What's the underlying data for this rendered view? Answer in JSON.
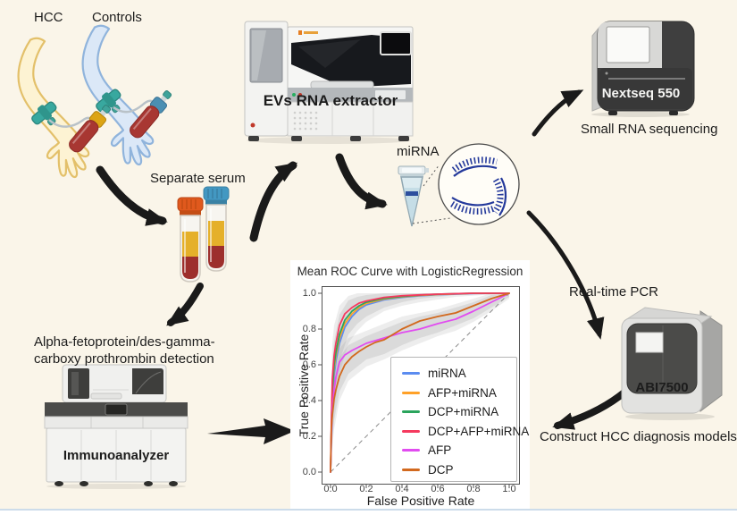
{
  "page": {
    "background": "#faf5e9"
  },
  "labels": {
    "hcc": "HCC",
    "controls": "Controls",
    "separate_serum": "Separate serum",
    "evs_extractor": "EVs RNA extractor",
    "mirna": "miRNA",
    "small_rna_seq": "Small RNA sequencing",
    "nextseq": "Nextseq 550",
    "realtime_pcr": "Real-time PCR",
    "abi7500": "ABI7500",
    "construct_models": "Construct HCC diagnosis models",
    "afp_dcp_line1": "Alpha-fetoprotein/des-gamma-",
    "afp_dcp_line2": "carboxy prothrombin detection",
    "immunoanalyzer": "Immunoanalyzer"
  },
  "chart_data": {
    "type": "line",
    "title": "Mean ROC Curve with LogisticRegression",
    "xlabel": "False Positive Rate",
    "ylabel": "True Positive Rate",
    "xlim": [
      0,
      1
    ],
    "ylim": [
      0,
      1
    ],
    "x_ticks": [
      "0.0",
      "0.2",
      "0.4",
      "0.6",
      "0.8",
      "1.0"
    ],
    "y_ticks": [
      "0.0",
      "0.2",
      "0.4",
      "0.6",
      "0.8",
      "1.0"
    ],
    "grid": false,
    "legend_position": "lower right",
    "diagonal_reference": true,
    "series": [
      {
        "name": "miRNA",
        "color": "#5b8cf0",
        "x": [
          0,
          0.005,
          0.01,
          0.02,
          0.03,
          0.05,
          0.08,
          0.12,
          0.16,
          0.2,
          0.3,
          0.4,
          0.5,
          0.6,
          0.8,
          1
        ],
        "y": [
          0,
          0.17,
          0.4,
          0.54,
          0.62,
          0.72,
          0.81,
          0.87,
          0.91,
          0.935,
          0.963,
          0.977,
          0.986,
          0.992,
          0.999,
          1
        ]
      },
      {
        "name": "AFP+miRNA",
        "color": "#ffa128",
        "x": [
          0,
          0.005,
          0.01,
          0.02,
          0.03,
          0.05,
          0.08,
          0.12,
          0.16,
          0.2,
          0.3,
          0.4,
          0.5,
          0.6,
          0.8,
          1
        ],
        "y": [
          0,
          0.24,
          0.44,
          0.58,
          0.65,
          0.75,
          0.83,
          0.885,
          0.92,
          0.943,
          0.968,
          0.98,
          0.988,
          0.993,
          1,
          1
        ]
      },
      {
        "name": "DCP+miRNA",
        "color": "#2aa45c",
        "x": [
          0,
          0.005,
          0.01,
          0.02,
          0.03,
          0.05,
          0.08,
          0.12,
          0.16,
          0.2,
          0.3,
          0.4,
          0.5,
          0.6,
          0.8,
          1
        ],
        "y": [
          0,
          0.26,
          0.46,
          0.6,
          0.67,
          0.77,
          0.85,
          0.9,
          0.93,
          0.95,
          0.972,
          0.982,
          0.99,
          0.995,
          1,
          1
        ]
      },
      {
        "name": "DCP+AFP+miRNA",
        "color": "#f5395e",
        "x": [
          0,
          0.005,
          0.01,
          0.02,
          0.03,
          0.05,
          0.08,
          0.12,
          0.16,
          0.2,
          0.3,
          0.4,
          0.5,
          0.6,
          0.8,
          1
        ],
        "y": [
          0,
          0.3,
          0.52,
          0.65,
          0.72,
          0.82,
          0.885,
          0.92,
          0.945,
          0.957,
          0.977,
          0.986,
          0.991,
          0.995,
          1,
          1
        ]
      },
      {
        "name": "AFP",
        "color": "#e14cf0",
        "x": [
          0,
          0.005,
          0.01,
          0.02,
          0.03,
          0.05,
          0.08,
          0.12,
          0.16,
          0.2,
          0.3,
          0.4,
          0.5,
          0.6,
          0.7,
          0.8,
          0.9,
          1
        ],
        "y": [
          0,
          0.21,
          0.35,
          0.46,
          0.53,
          0.615,
          0.655,
          0.68,
          0.7,
          0.72,
          0.75,
          0.78,
          0.8,
          0.83,
          0.855,
          0.9,
          0.95,
          1
        ]
      },
      {
        "name": "DCP",
        "color": "#d2691e",
        "x": [
          0,
          0.005,
          0.01,
          0.02,
          0.03,
          0.05,
          0.08,
          0.12,
          0.16,
          0.2,
          0.25,
          0.3,
          0.35,
          0.4,
          0.5,
          0.6,
          0.7,
          0.8,
          0.9,
          1
        ],
        "y": [
          0,
          0.25,
          0.32,
          0.41,
          0.46,
          0.535,
          0.6,
          0.645,
          0.675,
          0.7,
          0.725,
          0.74,
          0.77,
          0.8,
          0.845,
          0.87,
          0.89,
          0.93,
          0.97,
          1
        ]
      }
    ],
    "confidence_bands": [
      {
        "group": "miRNA-models outer",
        "opacity": 0.16,
        "x": [
          0,
          0.01,
          0.02,
          0.05,
          0.1,
          0.15,
          0.2,
          0.3,
          0.4,
          0.5,
          0.7,
          1
        ],
        "hi": [
          0.32,
          0.72,
          0.82,
          0.93,
          0.985,
          1,
          1,
          1,
          1,
          1,
          1,
          1
        ],
        "lo": [
          0.04,
          0.2,
          0.34,
          0.55,
          0.72,
          0.79,
          0.84,
          0.9,
          0.93,
          0.95,
          0.98,
          1
        ]
      },
      {
        "group": "miRNA-models inner",
        "opacity": 0.2,
        "x": [
          0,
          0.01,
          0.02,
          0.05,
          0.1,
          0.15,
          0.2,
          0.3,
          0.4,
          0.5,
          0.7,
          1
        ],
        "hi": [
          0.28,
          0.6,
          0.73,
          0.88,
          0.96,
          0.98,
          0.99,
          1,
          1,
          1,
          1,
          1
        ],
        "lo": [
          0.07,
          0.28,
          0.43,
          0.62,
          0.77,
          0.83,
          0.87,
          0.92,
          0.95,
          0.97,
          0.99,
          1
        ]
      },
      {
        "group": "AFP-DCP outer",
        "opacity": 0.16,
        "x": [
          0,
          0.02,
          0.05,
          0.1,
          0.2,
          0.3,
          0.4,
          0.5,
          0.6,
          0.7,
          0.8,
          0.9,
          1
        ],
        "hi": [
          0.32,
          0.58,
          0.69,
          0.75,
          0.79,
          0.83,
          0.87,
          0.89,
          0.91,
          0.94,
          0.97,
          1,
          1
        ],
        "lo": [
          0.04,
          0.24,
          0.4,
          0.51,
          0.59,
          0.63,
          0.68,
          0.72,
          0.76,
          0.79,
          0.84,
          0.9,
          0.97
        ]
      },
      {
        "group": "AFP-DCP inner",
        "opacity": 0.2,
        "x": [
          0,
          0.02,
          0.05,
          0.1,
          0.2,
          0.3,
          0.4,
          0.5,
          0.6,
          0.7,
          0.8,
          0.9,
          1
        ],
        "hi": [
          0.28,
          0.52,
          0.64,
          0.71,
          0.76,
          0.8,
          0.84,
          0.87,
          0.89,
          0.92,
          0.95,
          0.99,
          1
        ],
        "lo": [
          0.07,
          0.29,
          0.45,
          0.55,
          0.63,
          0.66,
          0.71,
          0.75,
          0.78,
          0.82,
          0.86,
          0.92,
          0.98
        ]
      }
    ]
  }
}
